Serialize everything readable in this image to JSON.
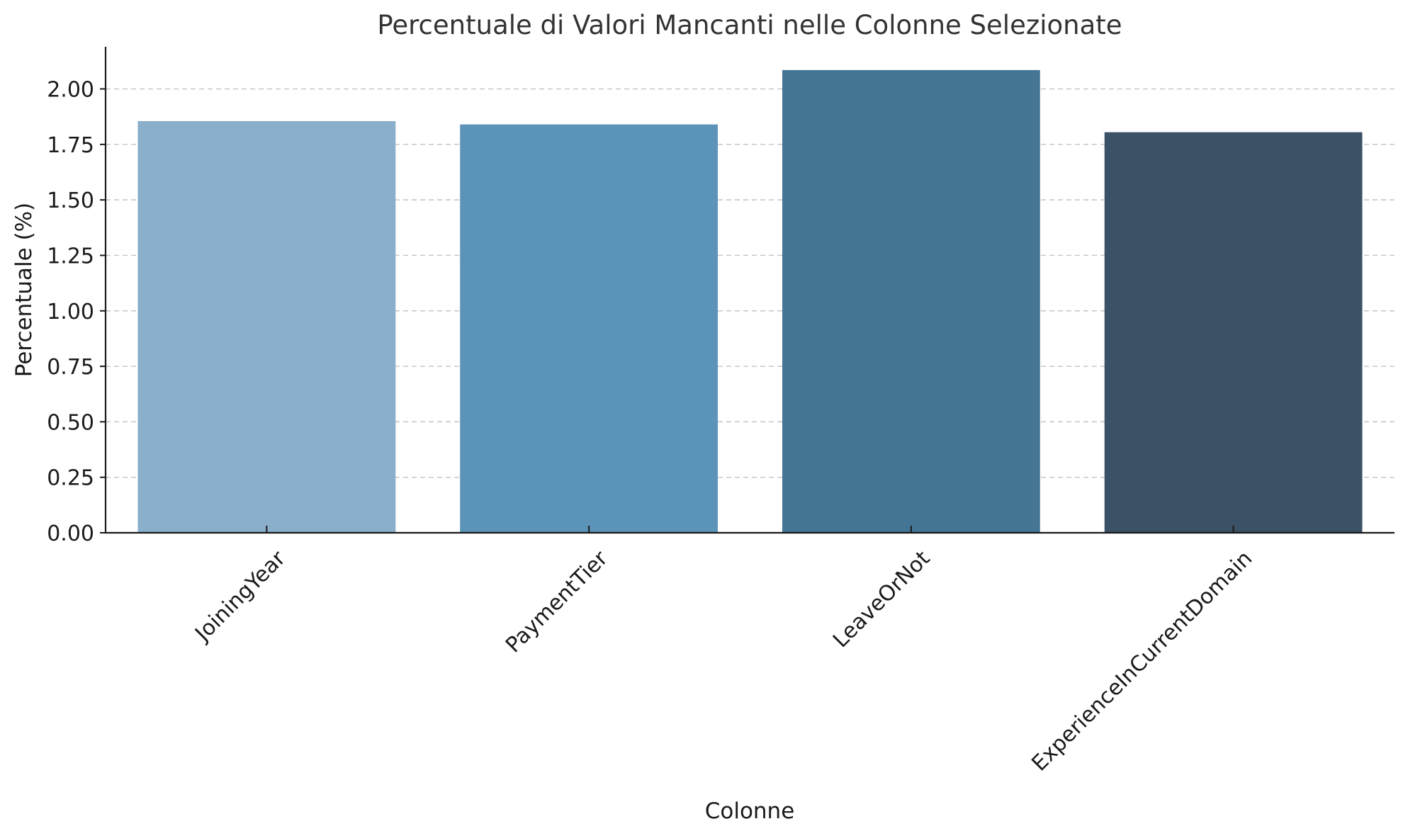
{
  "chart_data": {
    "type": "bar",
    "title": "Percentuale di Valori Mancanti nelle Colonne Selezionate",
    "xlabel": "Colonne",
    "ylabel": "Percentuale (%)",
    "categories": [
      "JoiningYear",
      "PaymentTier",
      "LeaveOrNot",
      "ExperienceInCurrentDomain"
    ],
    "values": [
      1.855,
      1.84,
      2.085,
      1.805
    ],
    "colors": [
      "#89afca",
      "#5c93b9",
      "#447595",
      "#3b5166"
    ],
    "ylim": [
      0,
      2.19
    ],
    "yticks": [
      "0.00",
      "0.25",
      "0.50",
      "0.75",
      "1.00",
      "1.25",
      "1.50",
      "1.75",
      "2.00"
    ],
    "grid": "y-dashed",
    "legend": "none"
  }
}
